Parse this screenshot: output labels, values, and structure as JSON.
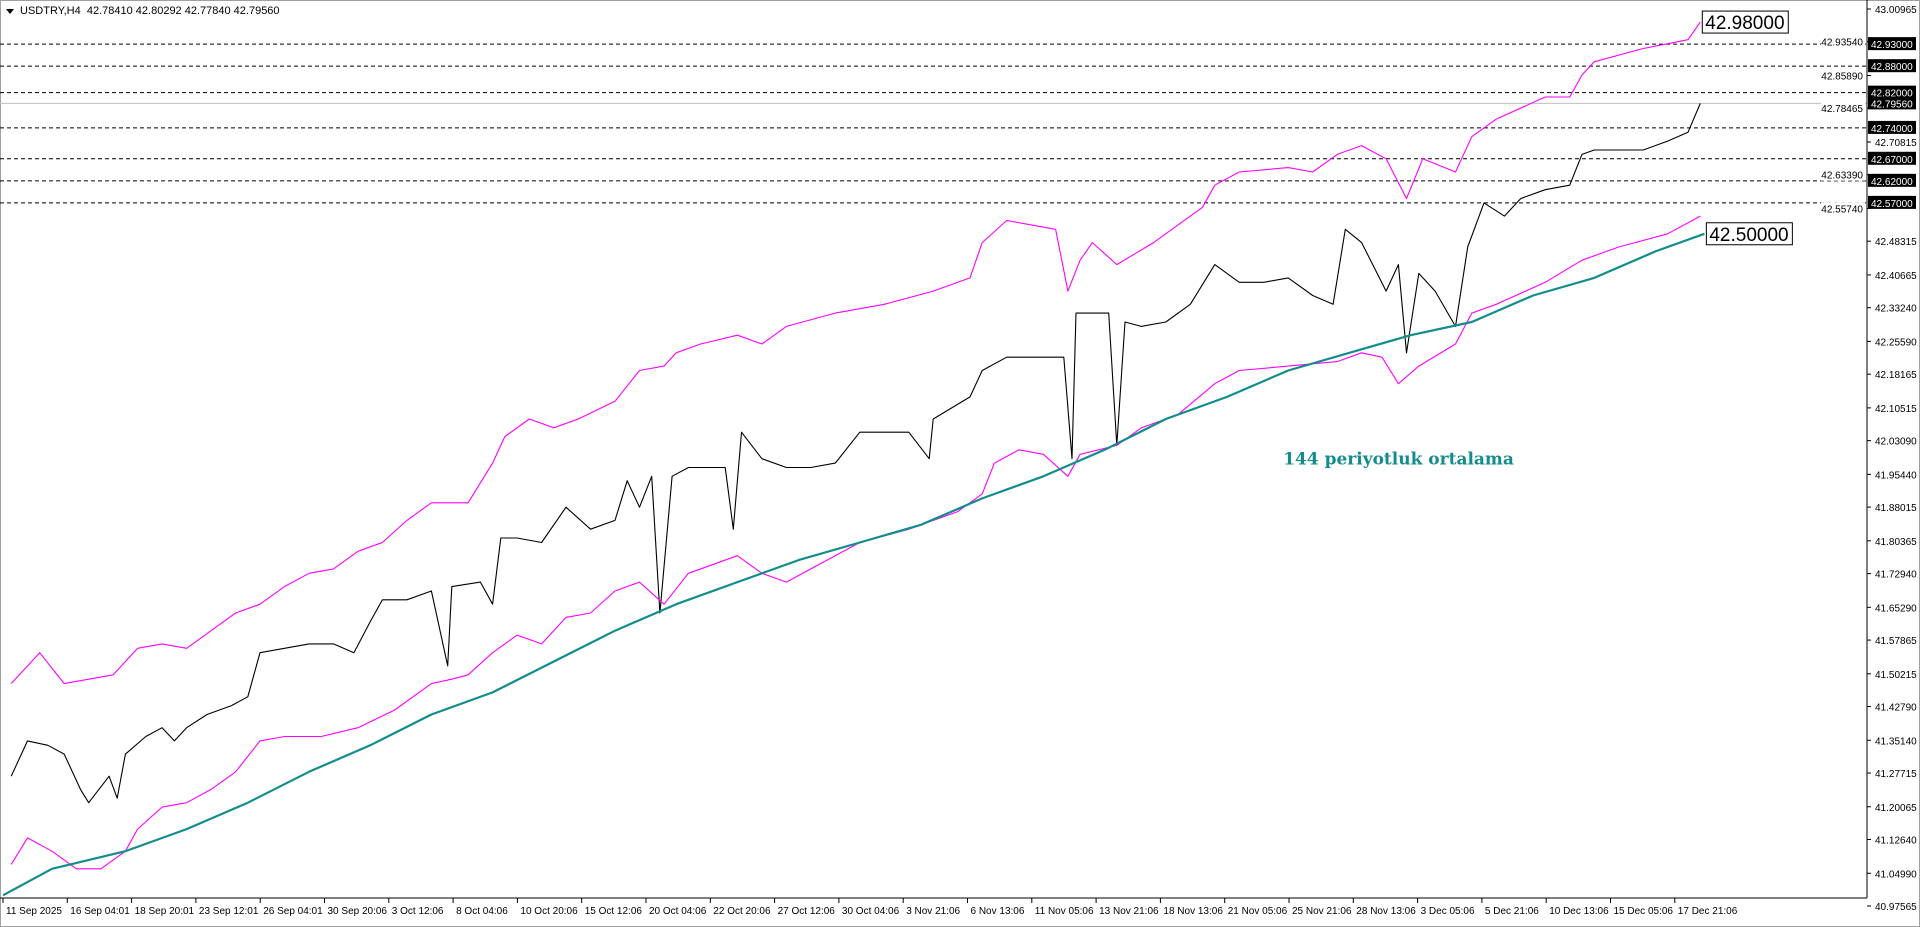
{
  "header": {
    "symbol": "USDTRY,H4",
    "ohlc": "42.78410 42.80292 42.77840 42.79560"
  },
  "chart_data": {
    "type": "line",
    "title": "",
    "xlabel": "",
    "ylabel": "",
    "x_unit": "H4 bar index",
    "ylim": [
      40.97565,
      43.00965
    ],
    "grid": false,
    "x_tick_labels": [
      "11 Sep 2025",
      "16 Sep 04:01",
      "18 Sep 20:01",
      "23 Sep 12:01",
      "26 Sep 04:01",
      "30 Sep 20:06",
      "3 Oct 12:06",
      "8 Oct 04:06",
      "10 Oct 20:06",
      "15 Oct 12:06",
      "20 Oct 04:06",
      "22 Oct 20:06",
      "27 Oct 12:06",
      "30 Oct 04:06",
      "3 Nov 21:06",
      "6 Nov 13:06",
      "11 Nov 05:06",
      "13 Nov 21:06",
      "18 Nov 13:06",
      "21 Nov 05:06",
      "25 Nov 21:06",
      "28 Nov 13:06",
      "3 Dec 05:06",
      "5 Dec 21:06",
      "10 Dec 13:06",
      "15 Dec 05:06",
      "17 Dec 21:06"
    ],
    "y_tick_labels": [
      "43.00965",
      "42.93540",
      "42.85890",
      "42.78465",
      "42.70815",
      "42.63390",
      "42.55740",
      "42.48315",
      "42.40665",
      "42.33240",
      "42.25590",
      "42.18165",
      "42.10515",
      "42.03090",
      "41.95440",
      "41.88015",
      "41.80365",
      "41.72940",
      "41.65290",
      "41.57865",
      "41.50215",
      "41.42790",
      "41.35140",
      "41.27715",
      "41.20065",
      "41.12640",
      "41.04990",
      "40.97565"
    ],
    "series": [
      {
        "key": "close",
        "color": "#000000",
        "points": [
          [
            2,
            41.27
          ],
          [
            6,
            41.35
          ],
          [
            11,
            41.34
          ],
          [
            15,
            41.32
          ],
          [
            19,
            41.24
          ],
          [
            21,
            41.21
          ],
          [
            26,
            41.27
          ],
          [
            28,
            41.22
          ],
          [
            30,
            41.32
          ],
          [
            35,
            41.36
          ],
          [
            39,
            41.38
          ],
          [
            42,
            41.35
          ],
          [
            45,
            41.38
          ],
          [
            50,
            41.41
          ],
          [
            56,
            41.43
          ],
          [
            60,
            41.45
          ],
          [
            63,
            41.55
          ],
          [
            69,
            41.56
          ],
          [
            75,
            41.57
          ],
          [
            81,
            41.57
          ],
          [
            86,
            41.55
          ],
          [
            90,
            41.62
          ],
          [
            93,
            41.67
          ],
          [
            99,
            41.67
          ],
          [
            105,
            41.69
          ],
          [
            109,
            41.52
          ],
          [
            110,
            41.7
          ],
          [
            117,
            41.71
          ],
          [
            120,
            41.66
          ],
          [
            122,
            41.81
          ],
          [
            126,
            41.81
          ],
          [
            132,
            41.8
          ],
          [
            138,
            41.88
          ],
          [
            144,
            41.83
          ],
          [
            150,
            41.85
          ],
          [
            153,
            41.94
          ],
          [
            156,
            41.88
          ],
          [
            159,
            41.95
          ],
          [
            161,
            41.64
          ],
          [
            164,
            41.95
          ],
          [
            168,
            41.97
          ],
          [
            177,
            41.97
          ],
          [
            179,
            41.83
          ],
          [
            181,
            42.05
          ],
          [
            186,
            41.99
          ],
          [
            192,
            41.97
          ],
          [
            198,
            41.97
          ],
          [
            204,
            41.98
          ],
          [
            210,
            42.05
          ],
          [
            216,
            42.05
          ],
          [
            222,
            42.05
          ],
          [
            227,
            41.99
          ],
          [
            228,
            42.08
          ],
          [
            237,
            42.13
          ],
          [
            240,
            42.19
          ],
          [
            246,
            42.22
          ],
          [
            255,
            42.22
          ],
          [
            260,
            42.22
          ],
          [
            262,
            41.99
          ],
          [
            263,
            42.32
          ],
          [
            267,
            42.32
          ],
          [
            271,
            42.32
          ],
          [
            273,
            42.02
          ],
          [
            275,
            42.3
          ],
          [
            279,
            42.29
          ],
          [
            285,
            42.3
          ],
          [
            291,
            42.34
          ],
          [
            297,
            42.43
          ],
          [
            303,
            42.39
          ],
          [
            309,
            42.39
          ],
          [
            315,
            42.4
          ],
          [
            321,
            42.36
          ],
          [
            326,
            42.34
          ],
          [
            329,
            42.51
          ],
          [
            333,
            42.48
          ],
          [
            339,
            42.37
          ],
          [
            342,
            42.43
          ],
          [
            344,
            42.23
          ],
          [
            347,
            42.41
          ],
          [
            351,
            42.37
          ],
          [
            356,
            42.29
          ],
          [
            359,
            42.47
          ],
          [
            363,
            42.57
          ],
          [
            368,
            42.54
          ],
          [
            372,
            42.58
          ],
          [
            378,
            42.6
          ],
          [
            384,
            42.61
          ],
          [
            387,
            42.68
          ],
          [
            390,
            42.69
          ],
          [
            396,
            42.69
          ],
          [
            402,
            42.69
          ],
          [
            408,
            42.71
          ],
          [
            413,
            42.73
          ],
          [
            416,
            42.7956
          ]
        ]
      },
      {
        "key": "upper_band",
        "color": "#ff00ff",
        "points": [
          [
            2,
            41.48
          ],
          [
            9,
            41.55
          ],
          [
            15,
            41.48
          ],
          [
            21,
            41.49
          ],
          [
            27,
            41.5
          ],
          [
            33,
            41.56
          ],
          [
            39,
            41.57
          ],
          [
            45,
            41.56
          ],
          [
            51,
            41.6
          ],
          [
            57,
            41.64
          ],
          [
            63,
            41.66
          ],
          [
            69,
            41.7
          ],
          [
            75,
            41.73
          ],
          [
            81,
            41.74
          ],
          [
            87,
            41.78
          ],
          [
            93,
            41.8
          ],
          [
            99,
            41.85
          ],
          [
            105,
            41.89
          ],
          [
            114,
            41.89
          ],
          [
            120,
            41.98
          ],
          [
            123,
            42.04
          ],
          [
            129,
            42.08
          ],
          [
            135,
            42.06
          ],
          [
            141,
            42.08
          ],
          [
            150,
            42.12
          ],
          [
            156,
            42.19
          ],
          [
            162,
            42.2
          ],
          [
            165,
            42.23
          ],
          [
            171,
            42.25
          ],
          [
            180,
            42.27
          ],
          [
            186,
            42.25
          ],
          [
            192,
            42.29
          ],
          [
            204,
            42.32
          ],
          [
            216,
            42.34
          ],
          [
            228,
            42.37
          ],
          [
            237,
            42.4
          ],
          [
            240,
            42.48
          ],
          [
            246,
            42.53
          ],
          [
            258,
            42.51
          ],
          [
            261,
            42.37
          ],
          [
            264,
            42.44
          ],
          [
            267,
            42.48
          ],
          [
            273,
            42.43
          ],
          [
            282,
            42.48
          ],
          [
            288,
            42.52
          ],
          [
            294,
            42.56
          ],
          [
            297,
            42.61
          ],
          [
            303,
            42.64
          ],
          [
            315,
            42.65
          ],
          [
            321,
            42.64
          ],
          [
            327,
            42.68
          ],
          [
            333,
            42.7
          ],
          [
            339,
            42.67
          ],
          [
            344,
            42.58
          ],
          [
            348,
            42.67
          ],
          [
            356,
            42.64
          ],
          [
            360,
            42.72
          ],
          [
            366,
            42.76
          ],
          [
            378,
            42.81
          ],
          [
            384,
            42.81
          ],
          [
            387,
            42.86
          ],
          [
            390,
            42.89
          ],
          [
            402,
            42.92
          ],
          [
            413,
            42.94
          ],
          [
            416,
            42.98
          ]
        ]
      },
      {
        "key": "lower_band",
        "color": "#ff00ff",
        "points": [
          [
            2,
            41.07
          ],
          [
            6,
            41.13
          ],
          [
            12,
            41.1
          ],
          [
            18,
            41.06
          ],
          [
            24,
            41.06
          ],
          [
            30,
            41.1
          ],
          [
            33,
            41.15
          ],
          [
            39,
            41.2
          ],
          [
            45,
            41.21
          ],
          [
            51,
            41.24
          ],
          [
            57,
            41.28
          ],
          [
            63,
            41.35
          ],
          [
            69,
            41.36
          ],
          [
            78,
            41.36
          ],
          [
            87,
            41.38
          ],
          [
            96,
            41.42
          ],
          [
            105,
            41.48
          ],
          [
            110,
            41.49
          ],
          [
            114,
            41.5
          ],
          [
            120,
            41.55
          ],
          [
            126,
            41.59
          ],
          [
            132,
            41.57
          ],
          [
            138,
            41.63
          ],
          [
            144,
            41.64
          ],
          [
            150,
            41.69
          ],
          [
            156,
            41.71
          ],
          [
            162,
            41.66
          ],
          [
            168,
            41.73
          ],
          [
            180,
            41.77
          ],
          [
            186,
            41.73
          ],
          [
            192,
            41.71
          ],
          [
            198,
            41.74
          ],
          [
            210,
            41.8
          ],
          [
            222,
            41.83
          ],
          [
            234,
            41.87
          ],
          [
            240,
            41.91
          ],
          [
            243,
            41.98
          ],
          [
            249,
            42.01
          ],
          [
            255,
            42.0
          ],
          [
            261,
            41.95
          ],
          [
            264,
            42.0
          ],
          [
            273,
            42.02
          ],
          [
            279,
            42.06
          ],
          [
            288,
            42.09
          ],
          [
            297,
            42.16
          ],
          [
            303,
            42.19
          ],
          [
            315,
            42.2
          ],
          [
            327,
            42.21
          ],
          [
            333,
            42.23
          ],
          [
            338,
            42.22
          ],
          [
            342,
            42.16
          ],
          [
            347,
            42.2
          ],
          [
            356,
            42.25
          ],
          [
            360,
            42.32
          ],
          [
            366,
            42.34
          ],
          [
            378,
            42.39
          ],
          [
            387,
            42.44
          ],
          [
            396,
            42.47
          ],
          [
            408,
            42.5
          ],
          [
            416,
            42.54
          ]
        ]
      },
      {
        "key": "ma_144",
        "color": "#138c8c",
        "points": [
          [
            0,
            41.0
          ],
          [
            12,
            41.06
          ],
          [
            30,
            41.1
          ],
          [
            45,
            41.15
          ],
          [
            60,
            41.21
          ],
          [
            75,
            41.28
          ],
          [
            90,
            41.34
          ],
          [
            105,
            41.41
          ],
          [
            120,
            41.46
          ],
          [
            135,
            41.53
          ],
          [
            150,
            41.6
          ],
          [
            165,
            41.66
          ],
          [
            180,
            41.71
          ],
          [
            195,
            41.76
          ],
          [
            210,
            41.8
          ],
          [
            225,
            41.84
          ],
          [
            240,
            41.9
          ],
          [
            255,
            41.95
          ],
          [
            270,
            42.01
          ],
          [
            285,
            42.08
          ],
          [
            300,
            42.13
          ],
          [
            315,
            42.19
          ],
          [
            330,
            42.23
          ],
          [
            345,
            42.27
          ],
          [
            360,
            42.3
          ],
          [
            375,
            42.36
          ],
          [
            390,
            42.4
          ],
          [
            405,
            42.46
          ],
          [
            417,
            42.5
          ]
        ]
      }
    ],
    "levels": [
      "42.93000",
      "42.88000",
      "42.82000",
      "42.74000",
      "42.67000",
      "42.62000",
      "42.57000"
    ],
    "current_price": "42.79560",
    "callouts": [
      {
        "text": "42.98000",
        "bar": 416,
        "price": 42.98
      },
      {
        "text": "42.50000",
        "bar": 417,
        "price": 42.5
      }
    ],
    "annotation": {
      "text": "144 periyotluk ortalama",
      "bar": 315,
      "price": 41.99
    }
  }
}
